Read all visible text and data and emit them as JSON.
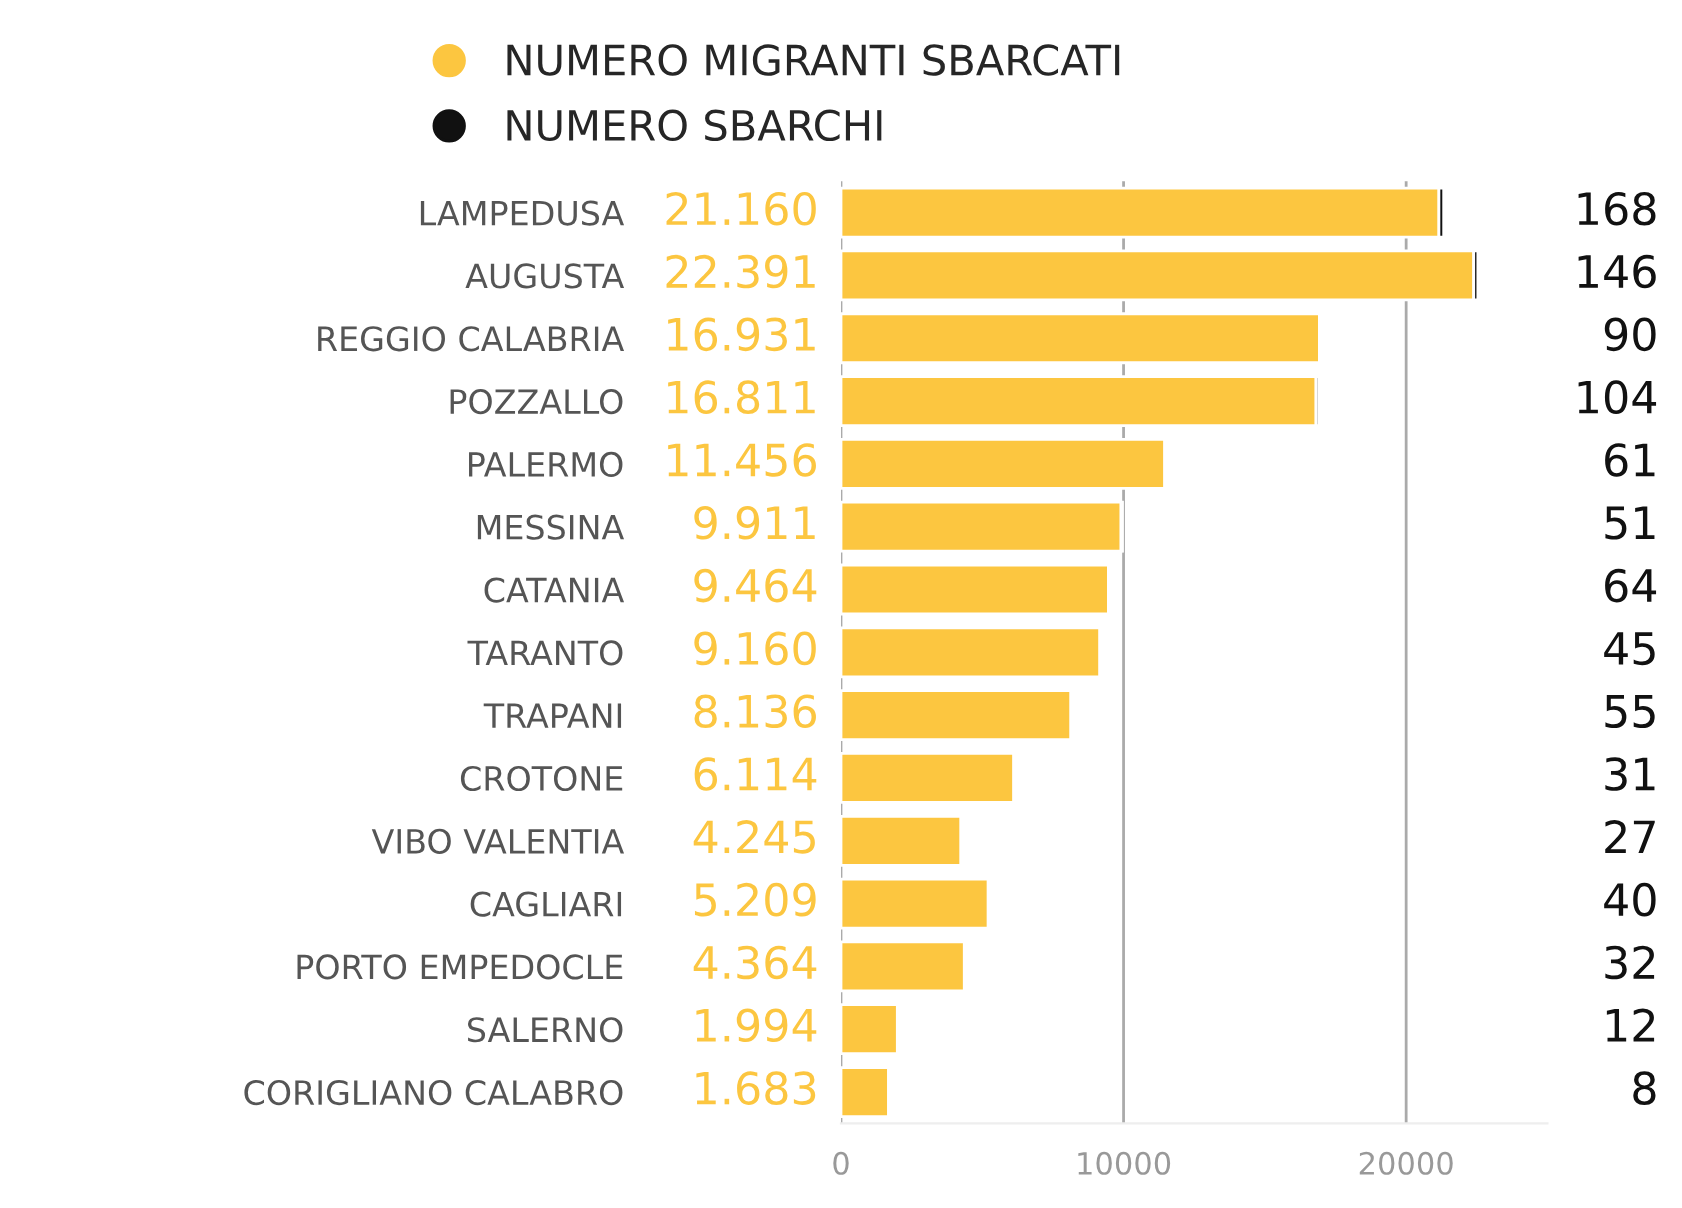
{
  "chart_data": {
    "type": "bar",
    "orientation": "horizontal",
    "stacked": true,
    "categories": [
      "LAMPEDUSA",
      "AUGUSTA",
      "REGGIO CALABRIA",
      "POZZALLO",
      "PALERMO",
      "MESSINA",
      "CATANIA",
      "TARANTO",
      "TRAPANI",
      "CROTONE",
      "VIBO VALENTIA",
      "CAGLIARI",
      "PORTO EMPEDOCLE",
      "SALERNO",
      "CORIGLIANO CALABRO"
    ],
    "series": [
      {
        "name": "NUMERO MIGRANTI SBARCATI",
        "color": "#fcc640",
        "values": [
          21160,
          22391,
          16931,
          16811,
          11456,
          9911,
          9464,
          9160,
          8136,
          6114,
          4245,
          5209,
          4364,
          1994,
          1683
        ],
        "value_labels": [
          "21.160",
          "22.391",
          "16.931",
          "16.811",
          "11.456",
          "9.911",
          "9.464",
          "9.160",
          "8.136",
          "6.114",
          "4.245",
          "5.209",
          "4.364",
          "1.994",
          "1.683"
        ]
      },
      {
        "name": "NUMERO SBARCHI",
        "color": "#111111",
        "values": [
          168,
          146,
          90,
          104,
          61,
          51,
          64,
          45,
          55,
          31,
          27,
          40,
          32,
          12,
          8
        ],
        "value_labels": [
          "168",
          "146",
          "90",
          "104",
          "61",
          "51",
          "64",
          "45",
          "55",
          "31",
          "27",
          "40",
          "32",
          "12",
          "8"
        ]
      }
    ],
    "xlim": [
      0,
      25000
    ],
    "xticks": [
      0,
      10000,
      20000
    ],
    "grid": "x",
    "legend": "top left"
  }
}
